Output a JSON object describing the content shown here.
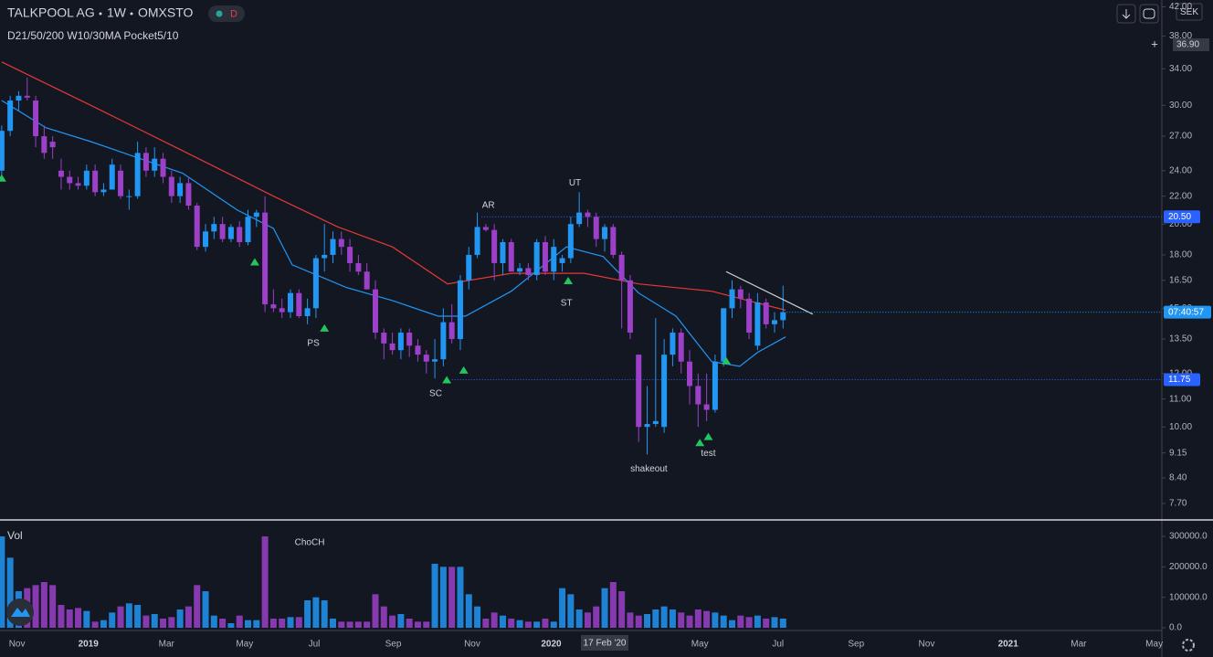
{
  "header": {
    "symbol": "TALKPOOL AG",
    "interval": "1W",
    "exchange": "OMXSTO",
    "badge": "D",
    "indicator": "D21/50/200 W10/30MA Pocket5/10",
    "currency": "SEK"
  },
  "chart_data": [
    {
      "type": "candlestick",
      "log_scale": true,
      "colors": {
        "up": "#2196f3",
        "down": "#9c3fc9"
      },
      "xlim": [
        -0.2,
        136.6
      ],
      "ylim": [
        7.3,
        43
      ],
      "xticks": [
        {
          "value": 1.8,
          "label": "Nov"
        },
        {
          "value": 10.2,
          "label": "2019"
        },
        {
          "value": 19.4,
          "label": "Mar"
        },
        {
          "value": 28.6,
          "label": "May"
        },
        {
          "value": 36.8,
          "label": "Jul"
        },
        {
          "value": 46.1,
          "label": "Sep"
        },
        {
          "value": 55.4,
          "label": "Nov"
        },
        {
          "value": 64.7,
          "label": "2020"
        },
        {
          "value": 82.2,
          "label": "May"
        },
        {
          "value": 91.4,
          "label": "Jul"
        },
        {
          "value": 100.6,
          "label": "Sep"
        },
        {
          "value": 108.9,
          "label": "Nov"
        },
        {
          "value": 118.5,
          "label": "2021"
        },
        {
          "value": 126.8,
          "label": "Mar"
        },
        {
          "value": 135.7,
          "label": "May"
        }
      ],
      "yticks": [
        {
          "value": 7.7,
          "label": "7.70"
        },
        {
          "value": 8.4,
          "label": "8.40"
        },
        {
          "value": 9.15,
          "label": "9.15"
        },
        {
          "value": 10,
          "label": "10.00"
        },
        {
          "value": 11,
          "label": "11.00"
        },
        {
          "value": 12,
          "label": "12.00"
        },
        {
          "value": 13.5,
          "label": "13.50"
        },
        {
          "value": 15,
          "label": "15.00"
        },
        {
          "value": 16.5,
          "label": "16.50"
        },
        {
          "value": 18,
          "label": "18.00"
        },
        {
          "value": 20,
          "label": "20.00"
        },
        {
          "value": 22,
          "label": "22.00"
        },
        {
          "value": 24,
          "label": "24.00"
        },
        {
          "value": 27,
          "label": "27.00"
        },
        {
          "value": 30,
          "label": "30.00"
        },
        {
          "value": 34,
          "label": "34.00"
        },
        {
          "value": 38,
          "label": "38.00"
        },
        {
          "value": 42,
          "label": "42.00"
        }
      ],
      "open": [
        24,
        27.5,
        30.5,
        31,
        30.5,
        27,
        26.5,
        24,
        23.5,
        23,
        22.8,
        24,
        22.3,
        22.5,
        24,
        22,
        22,
        25.5,
        24,
        25,
        23.5,
        22,
        23,
        21.3,
        18.5,
        19.5,
        20,
        19,
        19.8,
        18.8,
        20.5,
        20.8,
        15.2,
        15,
        14.8,
        15.8,
        14.6,
        15,
        17.8,
        18,
        19,
        18.5,
        17.5,
        17,
        16,
        13.8,
        13.3,
        13,
        13.8,
        13.2,
        12.8,
        12.5,
        12.6,
        14.3,
        13.5,
        16.5,
        18,
        19.8,
        19.6,
        17.5,
        18.8,
        17,
        17.2,
        16.8,
        18.8,
        17,
        17.5,
        17.8,
        20,
        20.8,
        20.5,
        19,
        19.8,
        18,
        16.5,
        12.8,
        10,
        10.1,
        10,
        12.8,
        13.8,
        12.5,
        11.5,
        10.8,
        10.6,
        12.5,
        15,
        16,
        15.5,
        13.2,
        15.3,
        14.2,
        14.4
      ],
      "high": [
        28,
        31,
        31.5,
        33,
        31,
        28,
        27,
        25,
        24,
        23.5,
        24.5,
        24.5,
        23,
        25,
        24.5,
        22.5,
        26.5,
        26,
        26,
        25.5,
        24,
        23.5,
        23.5,
        21.5,
        20,
        20.5,
        20.5,
        20,
        20.2,
        21,
        21,
        22,
        16,
        15.5,
        16,
        16,
        15.5,
        18,
        20,
        19.5,
        19.5,
        19,
        18,
        17.5,
        16.5,
        14,
        13.8,
        14,
        14,
        13.5,
        13,
        13.5,
        15,
        15.2,
        16.8,
        18.5,
        20.8,
        20,
        20,
        19,
        19,
        17.5,
        17.5,
        19,
        19.2,
        19,
        18,
        20.5,
        22.3,
        21,
        20.8,
        20,
        20,
        18.2,
        16.8,
        12.8,
        11.5,
        14.5,
        13.5,
        14,
        14,
        13,
        12,
        12,
        12.8,
        15,
        16.5,
        16.2,
        15.8,
        15.8,
        15.5,
        14.8,
        16.2
      ],
      "low": [
        23.5,
        27,
        29.5,
        30.5,
        26,
        25,
        25,
        22.5,
        22.5,
        22.5,
        22.5,
        22,
        22,
        22.5,
        21.8,
        21,
        21.8,
        23.5,
        23.5,
        23,
        21.5,
        21.5,
        21,
        18.3,
        18.2,
        19,
        18.8,
        18.8,
        18.5,
        18.6,
        19.8,
        14.8,
        14.8,
        14.5,
        14.5,
        14.5,
        14.2,
        14.5,
        17,
        17.5,
        18,
        17,
        16.8,
        16,
        13.5,
        12.6,
        12.8,
        12.6,
        12.7,
        12.5,
        12,
        11.8,
        12.3,
        13.3,
        13,
        16,
        17.8,
        19.5,
        16.5,
        16.8,
        17,
        16.8,
        16.5,
        16.5,
        16.8,
        16.5,
        17,
        17.5,
        19.8,
        19.8,
        18.5,
        18.2,
        17.8,
        14,
        13.5,
        9.5,
        9.1,
        10,
        9.8,
        12.3,
        12,
        10.8,
        10,
        10.2,
        10.5,
        12.3,
        14.5,
        15,
        13.5,
        13,
        14,
        13.8,
        14
      ],
      "close": [
        27.5,
        30.5,
        31,
        30.8,
        27,
        25.5,
        26,
        23.5,
        23,
        22.8,
        24,
        22.3,
        22.5,
        24.5,
        22,
        22,
        25.5,
        24,
        25,
        23.5,
        22,
        23,
        21.3,
        18.5,
        19.5,
        20,
        19,
        19.8,
        18.8,
        20.5,
        20.8,
        15.2,
        15,
        14.8,
        15.8,
        14.6,
        15,
        17.8,
        18,
        19,
        18.5,
        17.5,
        17,
        16,
        13.8,
        13.3,
        13,
        13.8,
        13.2,
        12.8,
        12.5,
        12.6,
        14.3,
        13.5,
        16.5,
        18,
        19.8,
        19.6,
        17.5,
        18.8,
        17,
        17.2,
        16.8,
        18.8,
        17,
        18.5,
        17.8,
        20,
        20.8,
        20.5,
        19,
        19.8,
        18,
        16.5,
        13.8,
        10,
        10.1,
        10.2,
        12.8,
        13.8,
        12.5,
        11.5,
        10.8,
        10.6,
        12.5,
        15,
        16,
        15.5,
        13.8,
        15.3,
        14.2,
        14.4,
        14.8
      ],
      "ma": [
        {
          "color": "#e53935",
          "x": [
            0,
            10.5,
            21.3,
            32,
            39.6,
            46,
            52.5,
            60,
            68.6,
            75,
            83.6,
            92.3
          ],
          "values": [
            34.8,
            30,
            25.7,
            22,
            19.8,
            18.5,
            16.3,
            16.9,
            16.9,
            16.3,
            15.9,
            14.9
          ]
        },
        {
          "color": "#2196f3",
          "x": [
            0,
            5.2,
            10.5,
            21.3,
            27.7,
            32,
            34.2,
            40.6,
            46,
            51.4,
            54.6,
            60,
            66.5,
            70.8,
            75,
            79.4,
            83.6,
            86.9,
            89,
            92.3
          ],
          "values": [
            30.5,
            27.8,
            26.5,
            23.8,
            21,
            19.7,
            17.4,
            16.1,
            15.4,
            14.6,
            14.6,
            15.9,
            18.5,
            17.9,
            15.8,
            14.6,
            12.5,
            12.3,
            12.9,
            13.6
          ]
        }
      ],
      "signals": [
        {
          "x": 0,
          "y": 23.7
        },
        {
          "x": 29.8,
          "y": 17.8
        },
        {
          "x": 38,
          "y": 14.2
        },
        {
          "x": 52.4,
          "y": 11.9
        },
        {
          "x": 54.4,
          "y": 12.3
        },
        {
          "x": 66.7,
          "y": 16.7
        },
        {
          "x": 82.2,
          "y": 9.6
        },
        {
          "x": 83.2,
          "y": 9.8
        },
        {
          "x": 85.3,
          "y": 12.7
        }
      ],
      "annotations": [
        {
          "text": "PS",
          "x": 36.7,
          "y": 13.3
        },
        {
          "text": "SC",
          "x": 51.1,
          "y": 11.2
        },
        {
          "text": "AR",
          "x": 57.3,
          "y": 21.3
        },
        {
          "text": "UT",
          "x": 67.5,
          "y": 23
        },
        {
          "text": "ST",
          "x": 66.5,
          "y": 15.25
        },
        {
          "text": "shakeout",
          "x": 76.2,
          "y": 8.66
        },
        {
          "text": "test",
          "x": 83.2,
          "y": 9.13
        }
      ],
      "hlines": [
        {
          "value": 20.5,
          "label": "20.50",
          "from": 56.5
        },
        {
          "value": 11.75,
          "label": "11.75",
          "from": 53
        }
      ],
      "trendline": {
        "x": [
          85.3,
          95.5
        ],
        "y": [
          17,
          14.7
        ]
      },
      "countdown": "07:40:57",
      "crosshair_y": {
        "value": 36.9,
        "label": "36.90"
      },
      "crosshair_x": {
        "value": 71,
        "label": "17 Feb '20"
      }
    },
    {
      "type": "bar",
      "title": "Vol",
      "ylim": [
        -9000,
        348000
      ],
      "yticks": [
        {
          "value": 0,
          "label": "0.0"
        },
        {
          "value": 100000,
          "label": "100000.0"
        },
        {
          "value": 200000,
          "label": "200000.0"
        },
        {
          "value": 300000,
          "label": "300000.0"
        }
      ],
      "values": [
        300000,
        230000,
        120000,
        130000,
        140000,
        150000,
        140000,
        75000,
        60000,
        65000,
        55000,
        20000,
        25000,
        50000,
        70000,
        80000,
        75000,
        40000,
        45000,
        30000,
        35000,
        60000,
        70000,
        140000,
        120000,
        40000,
        30000,
        15000,
        40000,
        25000,
        25000,
        300000,
        30000,
        30000,
        35000,
        35000,
        90000,
        100000,
        90000,
        30000,
        20000,
        20000,
        20000,
        20000,
        110000,
        70000,
        40000,
        45000,
        30000,
        20000,
        20000,
        210000,
        200000,
        200000,
        200000,
        110000,
        70000,
        30000,
        50000,
        40000,
        30000,
        25000,
        20000,
        20000,
        30000,
        20000,
        130000,
        110000,
        60000,
        50000,
        70000,
        130000,
        150000,
        120000,
        50000,
        40000,
        45000,
        60000,
        70000,
        60000,
        50000,
        40000,
        60000,
        55000,
        50000,
        40000,
        25000,
        40000,
        35000,
        40000,
        30000,
        35000,
        30000
      ],
      "annotations": [
        {
          "text": "ChoCH",
          "x": 34.5,
          "y": 279000
        }
      ]
    }
  ]
}
